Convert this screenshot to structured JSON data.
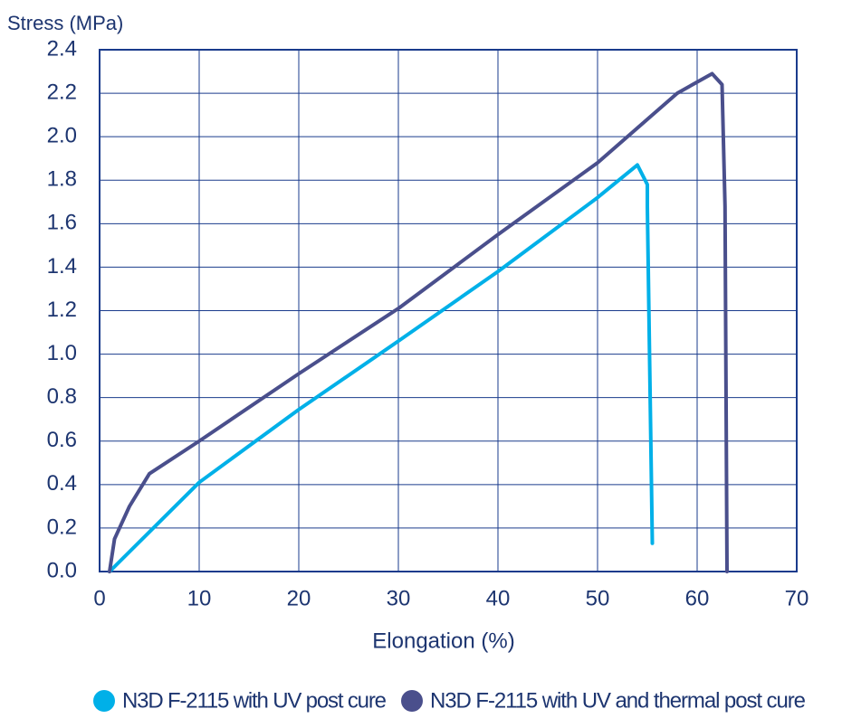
{
  "chart_data": {
    "type": "line",
    "y_label": "Stress (MPa)",
    "x_label": "Elongation (%)",
    "xlim": [
      0,
      70
    ],
    "xticks": [
      0,
      10,
      20,
      30,
      40,
      50,
      60,
      70
    ],
    "ylim": [
      0,
      2.4
    ],
    "yticks": [
      {
        "value": 0,
        "label": "0.0"
      },
      0.2,
      0.4,
      0.6,
      0.8,
      {
        "value": 1,
        "label": "1.0"
      },
      1.2,
      1.4,
      1.6,
      1.8,
      {
        "value": 2,
        "label": "2.0"
      },
      2.2,
      2.4
    ],
    "grid": true,
    "series": [
      {
        "name": "N3D F-2115 with UV post cure",
        "color": "#00b0e8",
        "x": [
          1,
          10,
          20,
          30,
          40,
          50,
          54,
          55,
          55,
          55.5
        ],
        "values": [
          0,
          0.41,
          0.745,
          1.06,
          1.38,
          1.72,
          1.87,
          1.78,
          1.68,
          0.13
        ]
      },
      {
        "name": "N3D F-2115 with UV and thermal post cure",
        "color": "#4a4f8c",
        "x": [
          1,
          1.5,
          3,
          5,
          10,
          20,
          30,
          40,
          50,
          58,
          61.5,
          62.5,
          62.8,
          63
        ],
        "values": [
          0,
          0.15,
          0.3,
          0.45,
          0.6,
          0.91,
          1.21,
          1.55,
          1.88,
          2.2,
          2.29,
          2.24,
          1.68,
          0
        ]
      }
    ]
  }
}
